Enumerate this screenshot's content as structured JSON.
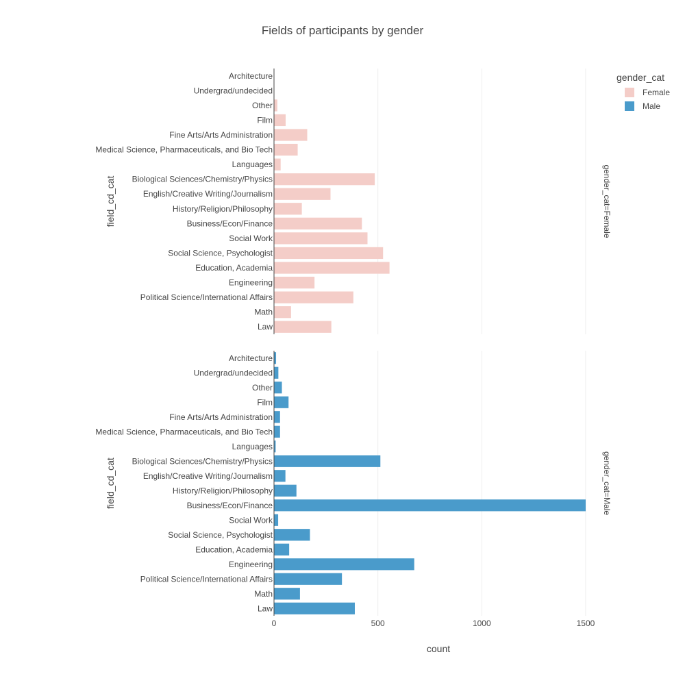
{
  "chart_data": {
    "type": "bar",
    "orientation": "horizontal",
    "title": "Fields of participants by gender",
    "xlabel": "count",
    "ylabel": "field_cd_cat",
    "xlim": [
      0,
      1900
    ],
    "x_ticks": [
      0,
      500,
      1000,
      1500
    ],
    "grid": true,
    "categories": [
      "Architecture",
      "Undergrad/undecided",
      "Other",
      "Film",
      "Fine Arts/Arts Administration",
      "Medical Science, Pharmaceuticals, and Bio Tech",
      "Languages",
      "Biological Sciences/Chemistry/Physics",
      "English/Creative Writing/Journalism",
      "History/Religion/Philosophy",
      "Business/Econ/Finance",
      "Social Work",
      "Social Science, Psychologist",
      "Education, Academia",
      "Engineering",
      "Political Science/International Affairs",
      "Math",
      "Law"
    ],
    "legend": {
      "title": "gender_cat",
      "placement": "top-right"
    },
    "series": [
      {
        "name": "Female",
        "facet_label": "gender_cat=Female",
        "color": "#f4cdc8",
        "values": [
          0,
          0,
          16,
          56,
          160,
          114,
          32,
          485,
          272,
          134,
          423,
          450,
          525,
          556,
          195,
          382,
          82,
          276
        ]
      },
      {
        "name": "Male",
        "facet_label": "gender_cat=Male",
        "color": "#4a9bcb",
        "values": [
          10,
          21,
          38,
          70,
          29,
          29,
          8,
          512,
          55,
          108,
          1502,
          20,
          173,
          73,
          675,
          327,
          125,
          389
        ]
      }
    ]
  }
}
